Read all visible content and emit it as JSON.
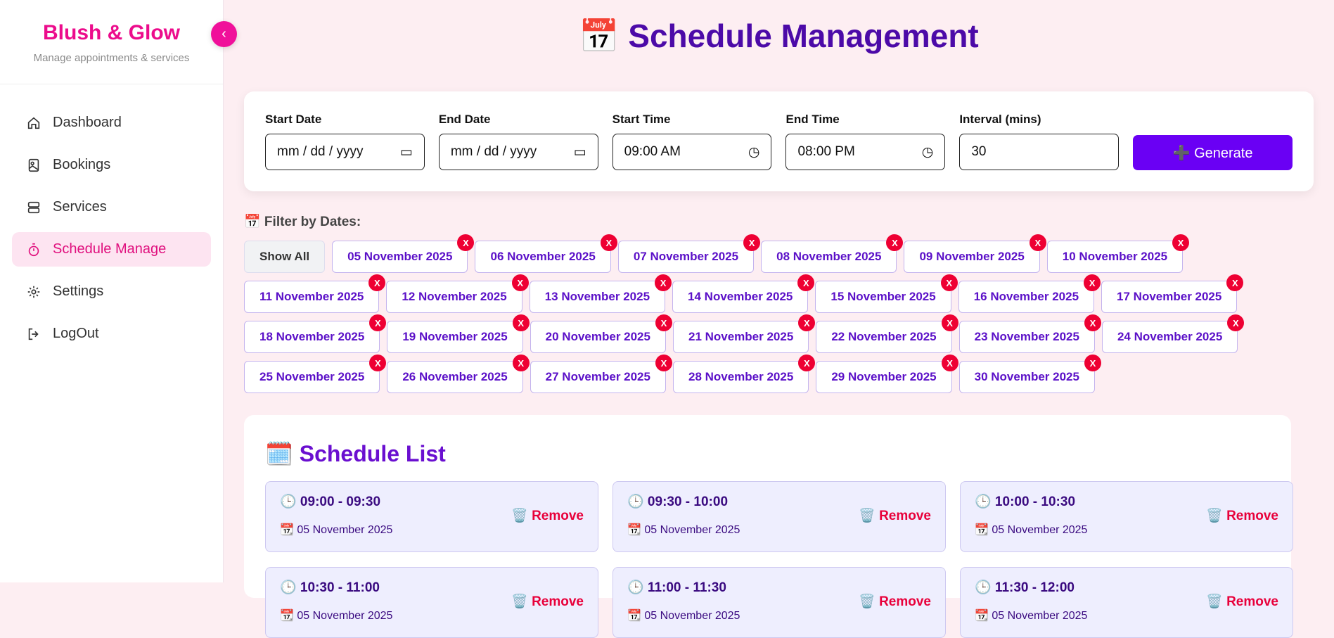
{
  "sidebar": {
    "brand": "Blush & Glow",
    "subtitle": "Manage appointments & services",
    "collapse_icon": "chevron-left-icon",
    "items": [
      {
        "label": "Dashboard",
        "icon": "home-icon"
      },
      {
        "label": "Bookings",
        "icon": "image-icon"
      },
      {
        "label": "Services",
        "icon": "server-icon"
      },
      {
        "label": "Schedule Manage",
        "icon": "timer-icon",
        "active": true
      },
      {
        "label": "Settings",
        "icon": "gear-icon"
      },
      {
        "label": "LogOut",
        "icon": "logout-icon"
      }
    ]
  },
  "header": {
    "title": "📅 Schedule Management"
  },
  "form": {
    "start_date": {
      "label": "Start Date",
      "value": "mm / dd / yyyy"
    },
    "end_date": {
      "label": "End Date",
      "value": "mm / dd / yyyy"
    },
    "start_time": {
      "label": "Start Time",
      "value": "09:00 AM"
    },
    "end_time": {
      "label": "End Time",
      "value": "08:00 PM"
    },
    "interval": {
      "label": "Interval (mins)",
      "value": "30"
    },
    "generate_label": "➕ Generate"
  },
  "filter": {
    "label": "📅 Filter by Dates:",
    "show_all": "Show All",
    "remove_label": "X",
    "dates": [
      "05 November 2025",
      "06 November 2025",
      "07 November 2025",
      "08 November 2025",
      "09 November 2025",
      "10 November 2025",
      "11 November 2025",
      "12 November 2025",
      "13 November 2025",
      "14 November 2025",
      "15 November 2025",
      "16 November 2025",
      "17 November 2025",
      "18 November 2025",
      "19 November 2025",
      "20 November 2025",
      "21 November 2025",
      "22 November 2025",
      "23 November 2025",
      "24 November 2025",
      "25 November 2025",
      "26 November 2025",
      "27 November 2025",
      "28 November 2025",
      "29 November 2025",
      "30 November 2025"
    ]
  },
  "schedule": {
    "title": "🗓️ Schedule List",
    "remove_label": "🗑️ Remove",
    "slots": [
      {
        "time": "🕒 09:00 - 09:30",
        "date": "📆 05 November 2025"
      },
      {
        "time": "🕒 09:30 - 10:00",
        "date": "📆 05 November 2025"
      },
      {
        "time": "🕒 10:00 - 10:30",
        "date": "📆 05 November 2025"
      },
      {
        "time": "🕒 10:30 - 11:00",
        "date": "📆 05 November 2025"
      },
      {
        "time": "🕒 11:00 - 11:30",
        "date": "📆 05 November 2025"
      },
      {
        "time": "🕒 11:30 - 12:00",
        "date": "📆 05 November 2025"
      }
    ]
  },
  "colors": {
    "brand": "#ec0c8c",
    "accent": "#6a00f4",
    "title": "#4c0aa8",
    "danger": "#ee0033"
  }
}
